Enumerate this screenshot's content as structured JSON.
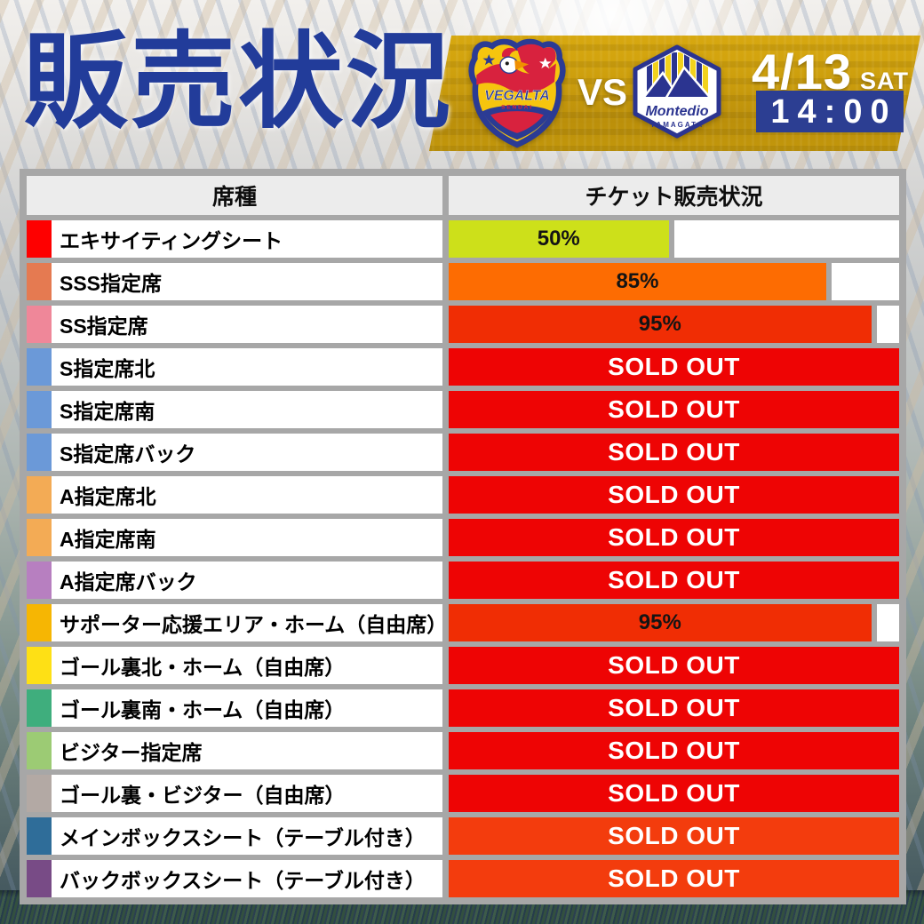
{
  "header": {
    "title": "販売状況",
    "vs_label": "VS",
    "date": "4/13",
    "day": "SAT",
    "time": "14:00",
    "home_team": {
      "name": "VEGALTA",
      "sub": "SENDAI"
    },
    "away_team": {
      "name": "Montedio",
      "sub": "YAMAGATA"
    },
    "banner_color": "#d2a30e",
    "time_box_color": "#2c3e92",
    "title_color": "#223c9a"
  },
  "table": {
    "columns": [
      "席種",
      "チケット販売状況"
    ],
    "frame_color": "#a7a7a7",
    "header_bg": "#ececec",
    "rows": [
      {
        "label": "エキサイティングシート",
        "swatch": "#fe0000",
        "status": "50%",
        "percent": 50,
        "bar_color": "#cde01a"
      },
      {
        "label": "SSS指定席",
        "swatch": "#e57a51",
        "status": "85%",
        "percent": 85,
        "bar_color": "#fd6c02"
      },
      {
        "label": "SS指定席",
        "swatch": "#ef8799",
        "status": "95%",
        "percent": 95,
        "bar_color": "#f02d04"
      },
      {
        "label": "S指定席北",
        "swatch": "#6b99d8",
        "status": "SOLD OUT",
        "percent": 100,
        "bar_color": "#ee0404"
      },
      {
        "label": "S指定席南",
        "swatch": "#6b99d8",
        "status": "SOLD OUT",
        "percent": 100,
        "bar_color": "#ee0404"
      },
      {
        "label": "S指定席バック",
        "swatch": "#6b99d8",
        "status": "SOLD OUT",
        "percent": 100,
        "bar_color": "#ee0404"
      },
      {
        "label": "A指定席北",
        "swatch": "#f3ab55",
        "status": "SOLD OUT",
        "percent": 100,
        "bar_color": "#ee0404"
      },
      {
        "label": "A指定席南",
        "swatch": "#f3ab55",
        "status": "SOLD OUT",
        "percent": 100,
        "bar_color": "#ee0404"
      },
      {
        "label": "A指定席バック",
        "swatch": "#b77fc0",
        "status": "SOLD OUT",
        "percent": 100,
        "bar_color": "#ee0404"
      },
      {
        "label": "サポーター応援エリア・ホーム（自由席）",
        "swatch": "#f6b603",
        "status": "95%",
        "percent": 95,
        "bar_color": "#f02d04"
      },
      {
        "label": "ゴール裏北・ホーム（自由席）",
        "swatch": "#fee015",
        "status": "SOLD OUT",
        "percent": 100,
        "bar_color": "#ee0404"
      },
      {
        "label": "ゴール裏南・ホーム（自由席）",
        "swatch": "#3fae7d",
        "status": "SOLD OUT",
        "percent": 100,
        "bar_color": "#ee0404"
      },
      {
        "label": "ビジター指定席",
        "swatch": "#9ccb74",
        "status": "SOLD OUT",
        "percent": 100,
        "bar_color": "#ee0404"
      },
      {
        "label": "ゴール裏・ビジター（自由席）",
        "swatch": "#b3a9a4",
        "status": "SOLD OUT",
        "percent": 100,
        "bar_color": "#ee0404"
      },
      {
        "label": "メインボックスシート（テーブル付き）",
        "swatch": "#2f6d99",
        "status": "SOLD OUT",
        "percent": 100,
        "bar_color": "#f33c0d"
      },
      {
        "label": "バックボックスシート（テーブル付き）",
        "swatch": "#784b86",
        "status": "SOLD OUT",
        "percent": 100,
        "bar_color": "#f33c0d"
      }
    ]
  }
}
